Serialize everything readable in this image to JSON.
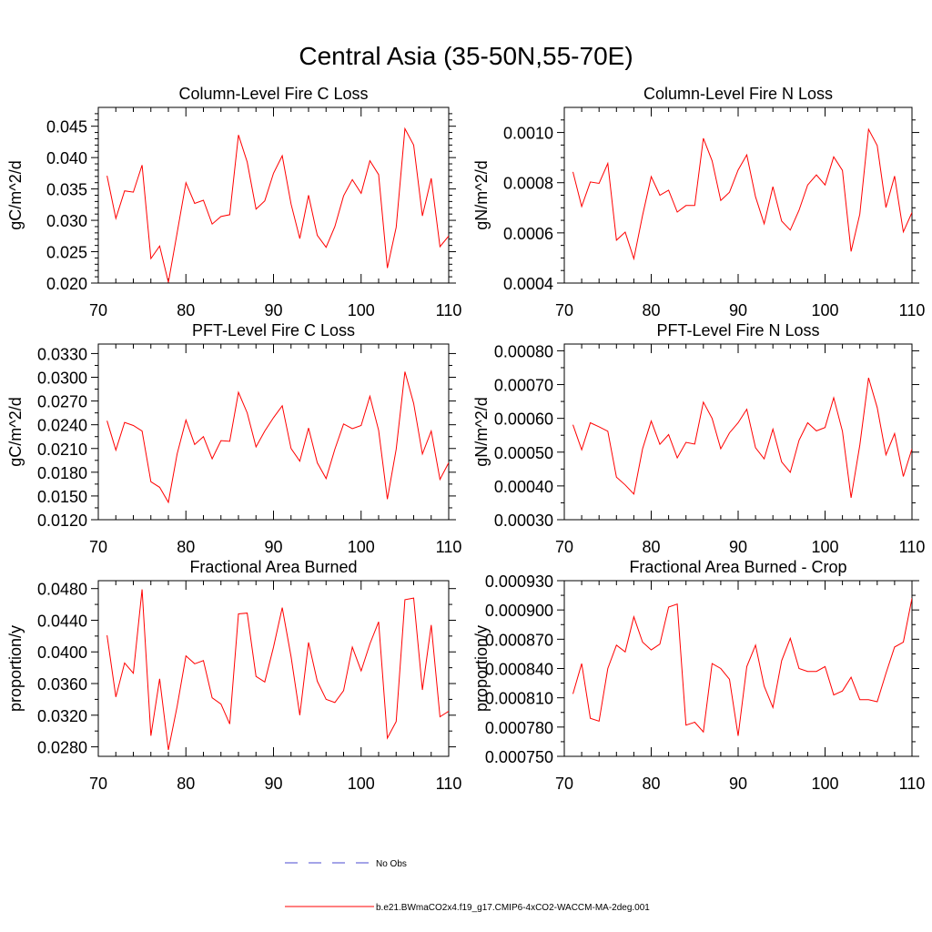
{
  "suptitle": "Central Asia (35-50N,55-70E)",
  "colors": {
    "model": "#ff0000",
    "obs": "#4a4ad0",
    "axis": "#000000"
  },
  "legend": {
    "obs_label": "No Obs",
    "model_label": "b.e21.BWmaCO2x4.f19_g17.CMIP6-4xCO2-WACCM-MA-2deg.001"
  },
  "chart_data": [
    {
      "type": "line",
      "title": "Column-Level Fire C Loss",
      "ylabel": "gC/m^2/d",
      "xlim": [
        70,
        110
      ],
      "ylim": [
        0.02,
        0.048
      ],
      "xticks": [
        70,
        80,
        90,
        100,
        110
      ],
      "yticks": [
        0.02,
        0.025,
        0.03,
        0.035,
        0.04,
        0.045
      ],
      "ytick_labels": [
        "0.020",
        "0.025",
        "0.030",
        "0.035",
        "0.040",
        "0.045"
      ],
      "yminor": [
        0.021,
        0.022,
        0.023,
        0.024,
        0.026,
        0.027,
        0.028,
        0.029,
        0.031,
        0.032,
        0.033,
        0.034,
        0.036,
        0.037,
        0.038,
        0.039,
        0.041,
        0.042,
        0.043,
        0.044,
        0.046,
        0.047
      ],
      "series": [
        {
          "name": "model",
          "x_start": 71,
          "values": [
            0.0371,
            0.0303,
            0.0347,
            0.0345,
            0.0388,
            0.0239,
            0.0259,
            0.0201,
            0.028,
            0.036,
            0.0327,
            0.0332,
            0.0294,
            0.0306,
            0.0309,
            0.0436,
            0.0393,
            0.0318,
            0.0331,
            0.0375,
            0.0403,
            0.0326,
            0.0271,
            0.034,
            0.0276,
            0.0257,
            0.029,
            0.0339,
            0.0365,
            0.0343,
            0.0395,
            0.0373,
            0.0224,
            0.0289,
            0.0446,
            0.042,
            0.0307,
            0.0367,
            0.0258,
            0.0275
          ]
        }
      ]
    },
    {
      "type": "line",
      "title": "Column-Level Fire N Loss",
      "ylabel": "gN/m^2/d",
      "xlim": [
        70,
        110
      ],
      "ylim": [
        0.0004,
        0.0011
      ],
      "xticks": [
        70,
        80,
        90,
        100,
        110
      ],
      "yticks": [
        0.0004,
        0.0006,
        0.0008,
        0.001
      ],
      "ytick_labels": [
        "0.0004",
        "0.0006",
        "0.0008",
        "0.0010"
      ],
      "yminor": [
        0.00045,
        0.0005,
        0.00055,
        0.00065,
        0.0007,
        0.00075,
        0.00085,
        0.0009,
        0.00095,
        0.00105
      ],
      "series": [
        {
          "name": "model",
          "x_start": 71,
          "values": [
            0.000843,
            0.000705,
            0.000803,
            0.000797,
            0.000877,
            0.000571,
            0.000603,
            0.000497,
            0.00067,
            0.000824,
            0.00075,
            0.00077,
            0.000683,
            0.000709,
            0.000709,
            0.000977,
            0.000887,
            0.000729,
            0.000762,
            0.000851,
            0.000911,
            0.000744,
            0.000636,
            0.000784,
            0.000647,
            0.000611,
            0.00069,
            0.000791,
            0.000831,
            0.000791,
            0.000903,
            0.000849,
            0.000526,
            0.000675,
            0.001013,
            0.000948,
            0.000701,
            0.000826,
            0.000604,
            0.000681
          ]
        }
      ]
    },
    {
      "type": "line",
      "title": "PFT-Level Fire C Loss",
      "ylabel": "gC/m^2/d",
      "xlim": [
        70,
        110
      ],
      "ylim": [
        0.012,
        0.0342
      ],
      "xticks": [
        70,
        80,
        90,
        100,
        110
      ],
      "yticks": [
        0.012,
        0.015,
        0.018,
        0.021,
        0.024,
        0.027,
        0.03,
        0.033
      ],
      "ytick_labels": [
        "0.0120",
        "0.0150",
        "0.0180",
        "0.0210",
        "0.0240",
        "0.0270",
        "0.0300",
        "0.0330"
      ],
      "yminor": [
        0.0135,
        0.0165,
        0.0195,
        0.0225,
        0.0255,
        0.0285,
        0.0315
      ],
      "series": [
        {
          "name": "model",
          "x_start": 71,
          "values": [
            0.0245,
            0.0208,
            0.0243,
            0.0239,
            0.0232,
            0.0168,
            0.0161,
            0.0142,
            0.0203,
            0.0246,
            0.0215,
            0.0225,
            0.0197,
            0.022,
            0.0219,
            0.0281,
            0.0255,
            0.0212,
            0.0232,
            0.0249,
            0.0264,
            0.021,
            0.0194,
            0.0236,
            0.0192,
            0.0172,
            0.0209,
            0.0241,
            0.0235,
            0.0239,
            0.0276,
            0.0233,
            0.0146,
            0.0209,
            0.0307,
            0.0267,
            0.0203,
            0.0232,
            0.0171,
            0.0192
          ]
        }
      ]
    },
    {
      "type": "line",
      "title": "PFT-Level Fire N Loss",
      "ylabel": "gN/m^2/d",
      "xlim": [
        70,
        110
      ],
      "ylim": [
        0.0003,
        0.00082
      ],
      "xticks": [
        70,
        80,
        90,
        100,
        110
      ],
      "yticks": [
        0.0003,
        0.0004,
        0.0005,
        0.0006,
        0.0007,
        0.0008
      ],
      "ytick_labels": [
        "0.00030",
        "0.00040",
        "0.00050",
        "0.00060",
        "0.00070",
        "0.00080"
      ],
      "yminor": [
        0.00035,
        0.00045,
        0.00055,
        0.00065,
        0.00075
      ],
      "series": [
        {
          "name": "model",
          "x_start": 71,
          "values": [
            0.000581,
            0.000507,
            0.000587,
            0.000575,
            0.000562,
            0.000426,
            0.000403,
            0.000376,
            0.00051,
            0.000592,
            0.000523,
            0.000552,
            0.000483,
            0.000529,
            0.000524,
            0.000648,
            0.0006,
            0.00051,
            0.000557,
            0.000587,
            0.000627,
            0.000513,
            0.00048,
            0.000568,
            0.000471,
            0.00044,
            0.000535,
            0.000587,
            0.000563,
            0.000573,
            0.000661,
            0.000562,
            0.000365,
            0.000521,
            0.00072,
            0.000632,
            0.000492,
            0.000555,
            0.000428,
            0.00051
          ]
        }
      ]
    },
    {
      "type": "line",
      "title": "Fractional Area Burned",
      "ylabel": "proportion/y",
      "xlim": [
        70,
        110
      ],
      "ylim": [
        0.0268,
        0.049
      ],
      "xticks": [
        70,
        80,
        90,
        100,
        110
      ],
      "yticks": [
        0.028,
        0.032,
        0.036,
        0.04,
        0.044,
        0.048
      ],
      "ytick_labels": [
        "0.0280",
        "0.0320",
        "0.0360",
        "0.0400",
        "0.0440",
        "0.0480"
      ],
      "yminor": [
        0.03,
        0.034,
        0.038,
        0.042,
        0.046
      ],
      "series": [
        {
          "name": "model",
          "x_start": 71,
          "values": [
            0.0421,
            0.0343,
            0.0386,
            0.0373,
            0.0479,
            0.0294,
            0.0366,
            0.0276,
            0.0331,
            0.0395,
            0.0385,
            0.0389,
            0.0342,
            0.0334,
            0.0309,
            0.0448,
            0.0449,
            0.0369,
            0.0362,
            0.0406,
            0.0456,
            0.0394,
            0.032,
            0.0412,
            0.0363,
            0.034,
            0.0336,
            0.0351,
            0.0406,
            0.0376,
            0.041,
            0.0438,
            0.0291,
            0.0312,
            0.0466,
            0.0468,
            0.0352,
            0.0434,
            0.0318,
            0.0325
          ]
        }
      ]
    },
    {
      "type": "line",
      "title": "Fractional Area Burned - Crop",
      "ylabel": "proportion/y",
      "xlim": [
        70,
        110
      ],
      "ylim": [
        0.00075,
        0.00093
      ],
      "xticks": [
        70,
        80,
        90,
        100,
        110
      ],
      "yticks": [
        0.00075,
        0.00078,
        0.00081,
        0.00084,
        0.00087,
        0.0009,
        0.00093
      ],
      "ytick_labels": [
        "0.000750",
        "0.000780",
        "0.000810",
        "0.000840",
        "0.000870",
        "0.000900",
        "0.000930"
      ],
      "yminor": [
        0.000765,
        0.000795,
        0.000825,
        0.000855,
        0.000885,
        0.000915
      ],
      "series": [
        {
          "name": "model",
          "x_start": 71,
          "values": [
            0.000814,
            0.000845,
            0.000789,
            0.000786,
            0.00084,
            0.000864,
            0.000857,
            0.000893,
            0.000867,
            0.000859,
            0.000865,
            0.000903,
            0.000906,
            0.000782,
            0.000785,
            0.000775,
            0.000845,
            0.00084,
            0.000829,
            0.000771,
            0.000842,
            0.000864,
            0.000822,
            0.0008,
            0.000848,
            0.000871,
            0.00084,
            0.000837,
            0.000837,
            0.000842,
            0.000813,
            0.000817,
            0.000831,
            0.000808,
            0.000808,
            0.000806,
            0.000835,
            0.000862,
            0.000867,
            0.000912
          ]
        }
      ]
    }
  ]
}
